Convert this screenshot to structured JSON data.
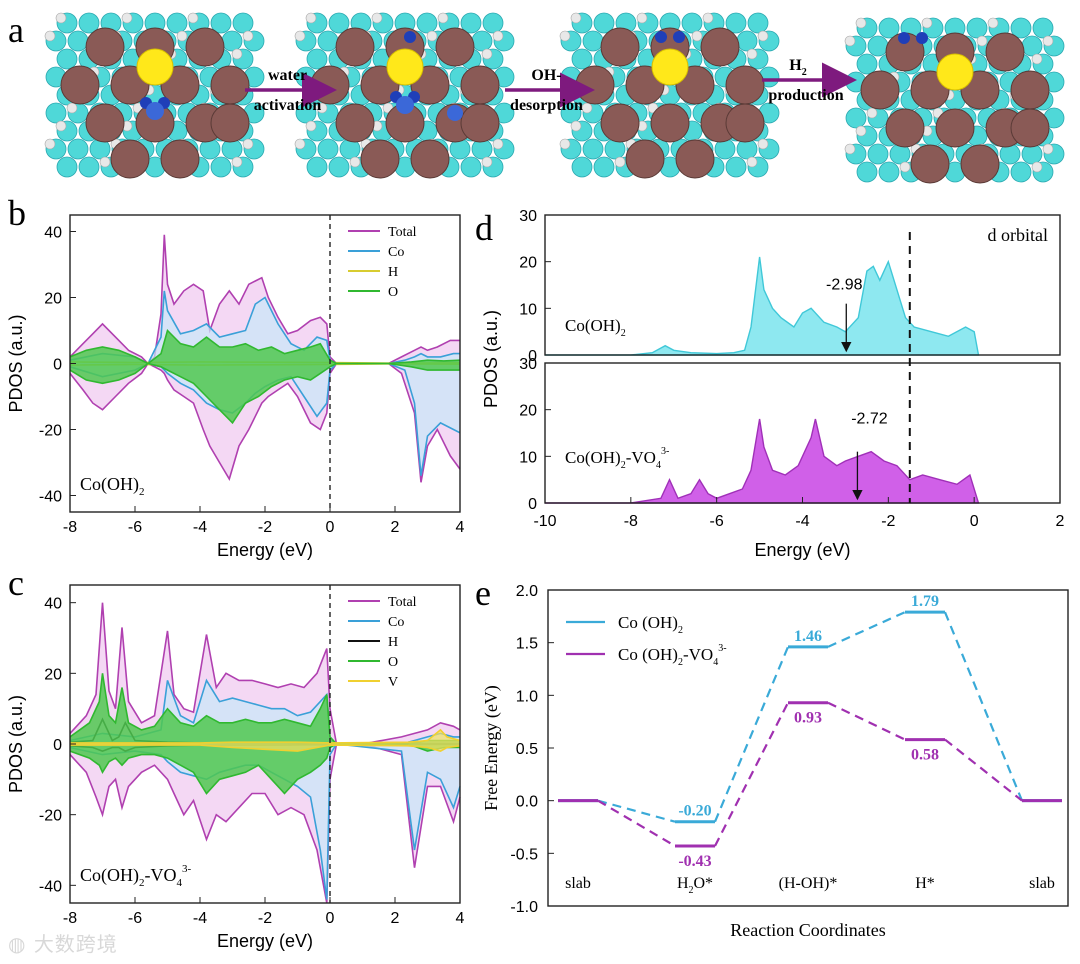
{
  "panel_a": {
    "letter": "a",
    "steps": [
      {
        "top": "water",
        "bottom": "activation"
      },
      {
        "top": "OH-",
        "bottom": "desorption"
      },
      {
        "top": "H2",
        "bottom": "production"
      }
    ],
    "colors": {
      "co": "#8a5a56",
      "o": "#4fd8d8",
      "h": "#e8e8e8",
      "v": "#ffe81a",
      "water": "#1f3fb8",
      "arrow": "#7e1a7e"
    }
  },
  "chart_data": [
    {
      "id": "b",
      "type": "area",
      "letter": "b",
      "title": "",
      "inset_label": "Co(OH)2",
      "xlabel": "Energy (eV)",
      "ylabel": "PDOS (a.u.)",
      "xlim": [
        -8,
        4
      ],
      "ylim": [
        -45,
        45
      ],
      "xticks": [
        -8,
        -6,
        -4,
        -2,
        0,
        2,
        4
      ],
      "yticks": [
        -40,
        -20,
        0,
        20,
        40
      ],
      "fermi": 0,
      "legend": [
        "Total",
        "Co",
        "H",
        "O"
      ],
      "series": [
        {
          "name": "Total",
          "color": "#b040b0",
          "fill": "#f0c8f0",
          "x": [
            -8,
            -7.6,
            -7.3,
            -7,
            -6.6,
            -6.2,
            -5.8,
            -5.6,
            -5.4,
            -5.2,
            -5.1,
            -5.0,
            -4.8,
            -4.5,
            -4.2,
            -3.9,
            -3.7,
            -3.4,
            -3.1,
            -2.8,
            -2.5,
            -2.3,
            -2.1,
            -1.9,
            -1.6,
            -1.3,
            -1,
            -0.6,
            -0.3,
            -0.1,
            0,
            0.2,
            1,
            1.8,
            2.2,
            2.6,
            2.8,
            3.0,
            3.3,
            3.7,
            4
          ],
          "pos": [
            2,
            6,
            9,
            12,
            8,
            4,
            2,
            0,
            2,
            15,
            39,
            24,
            18,
            22,
            24,
            22,
            10,
            18,
            22,
            18,
            24,
            25,
            26,
            20,
            14,
            9,
            10,
            13,
            14,
            12,
            2,
            0,
            0,
            0,
            2,
            4,
            5,
            4,
            5,
            7,
            7
          ],
          "neg": [
            -3,
            -8,
            -12,
            -14,
            -10,
            -6,
            -3,
            0,
            -1,
            -2,
            -3,
            -5,
            -8,
            -10,
            -12,
            -20,
            -25,
            -30,
            -35,
            -25,
            -20,
            -16,
            -12,
            -10,
            -8,
            -6,
            -10,
            -18,
            -20,
            -15,
            -3,
            0,
            0,
            0,
            -3,
            -15,
            -36,
            -25,
            -20,
            -28,
            -32
          ]
        },
        {
          "name": "Co",
          "color": "#3aa0d8",
          "fill": "#c8e8f8",
          "x": [
            -8,
            -7,
            -6,
            -5.6,
            -5.2,
            -5.1,
            -5.0,
            -4.6,
            -4.2,
            -3.8,
            -3.4,
            -3.0,
            -2.6,
            -2.3,
            -2.0,
            -1.6,
            -1.2,
            -0.8,
            -0.4,
            -0.1,
            0,
            0.2,
            1.8,
            2.3,
            2.6,
            2.8,
            3.0,
            3.4,
            3.8,
            4
          ],
          "pos": [
            1,
            3,
            2,
            0,
            8,
            22,
            16,
            9,
            10,
            12,
            8,
            9,
            10,
            18,
            20,
            12,
            6,
            4,
            8,
            7,
            1,
            0,
            0,
            1,
            2,
            3,
            2,
            2,
            3,
            3
          ],
          "neg": [
            -1,
            -4,
            -2,
            0,
            -1,
            -2,
            -3,
            -6,
            -8,
            -12,
            -14,
            -15,
            -12,
            -9,
            -7,
            -5,
            -4,
            -10,
            -16,
            -12,
            -2,
            0,
            0,
            -2,
            -12,
            -34,
            -22,
            -18,
            -20,
            -21
          ]
        },
        {
          "name": "H",
          "color": "#d8cc30",
          "fill": "none",
          "x": [
            -8,
            -6,
            -4,
            -2,
            0,
            2,
            4
          ],
          "pos": [
            0.5,
            0.3,
            0.5,
            0.4,
            0.3,
            0.1,
            0.2
          ],
          "neg": [
            -0.5,
            -0.3,
            -0.5,
            -0.4,
            -0.3,
            -0.1,
            -0.2
          ]
        },
        {
          "name": "O",
          "color": "#30b830",
          "fill": "#50c850",
          "x": [
            -8,
            -7.5,
            -7,
            -6.5,
            -6,
            -5.6,
            -5.2,
            -5.0,
            -4.6,
            -4.2,
            -3.8,
            -3.4,
            -3.0,
            -2.6,
            -2.2,
            -1.8,
            -1.4,
            -1,
            -0.6,
            -0.3,
            0,
            0.2,
            1.8,
            2.5,
            3,
            3.5,
            4
          ],
          "pos": [
            2,
            4,
            5,
            4,
            2,
            0,
            3,
            10,
            6,
            5,
            8,
            5,
            5,
            6,
            4,
            5,
            3,
            4,
            5,
            6,
            1,
            0,
            0,
            0.5,
            1,
            0.8,
            1
          ],
          "neg": [
            -2,
            -5,
            -6,
            -5,
            -3,
            0,
            -1,
            -2,
            -4,
            -6,
            -10,
            -14,
            -18,
            -12,
            -10,
            -7,
            -5,
            -4,
            -5,
            -3,
            -1,
            0,
            0,
            -1,
            -2,
            -2,
            -2
          ]
        }
      ]
    },
    {
      "id": "c",
      "type": "area",
      "letter": "c",
      "title": "",
      "inset_label": "Co(OH)2-VO4 3-",
      "xlabel": "Energy (eV)",
      "ylabel": "PDOS (a.u.)",
      "xlim": [
        -8,
        4
      ],
      "ylim": [
        -45,
        45
      ],
      "xticks": [
        -8,
        -6,
        -4,
        -2,
        0,
        2,
        4
      ],
      "yticks": [
        -40,
        -20,
        0,
        20,
        40
      ],
      "fermi": 0,
      "legend": [
        "Total",
        "Co",
        "H",
        "O",
        "V"
      ],
      "series": [
        {
          "name": "Total",
          "color": "#b040b0",
          "fill": "#f0c8f0",
          "x": [
            -8,
            -7.5,
            -7.2,
            -7.0,
            -6.8,
            -6.6,
            -6.4,
            -6.2,
            -5.8,
            -5.4,
            -5.0,
            -4.8,
            -4.5,
            -4.2,
            -3.8,
            -3.5,
            -3.2,
            -2.8,
            -2.4,
            -2,
            -1.6,
            -1.2,
            -0.8,
            -0.4,
            -0.1,
            0,
            0.2,
            1,
            2.2,
            2.6,
            3.0,
            3.4,
            3.8,
            4
          ],
          "pos": [
            3,
            8,
            14,
            40,
            15,
            10,
            33,
            12,
            6,
            8,
            32,
            14,
            10,
            9,
            31,
            16,
            20,
            18,
            18,
            17,
            16,
            17,
            16,
            20,
            27,
            10,
            0,
            0,
            2,
            3,
            4,
            6,
            5,
            4
          ],
          "neg": [
            -3,
            -8,
            -15,
            -20,
            -12,
            -10,
            -18,
            -12,
            -8,
            -6,
            -10,
            -14,
            -20,
            -16,
            -27,
            -20,
            -22,
            -18,
            -14,
            -14,
            -20,
            -18,
            -20,
            -30,
            -45,
            -10,
            0,
            0,
            -3,
            -35,
            -12,
            -12,
            -22,
            -15
          ]
        },
        {
          "name": "Co",
          "color": "#3aa0d8",
          "fill": "#c8e8f8",
          "x": [
            -8,
            -7,
            -6,
            -5.2,
            -5.0,
            -4.6,
            -4.2,
            -3.8,
            -3.4,
            -3.0,
            -2.6,
            -2.2,
            -1.8,
            -1.4,
            -1,
            -0.6,
            -0.3,
            -0.1,
            0,
            0.2,
            2.2,
            2.6,
            3,
            3.4,
            3.8,
            4
          ],
          "pos": [
            1,
            3,
            2,
            4,
            18,
            8,
            6,
            18,
            12,
            13,
            12,
            11,
            10,
            10,
            8,
            9,
            12,
            14,
            2,
            0,
            0,
            1,
            2,
            3,
            2,
            2
          ],
          "neg": [
            -1,
            -3,
            -2,
            -3,
            -5,
            -8,
            -9,
            -10,
            -8,
            -7,
            -6,
            -6,
            -8,
            -10,
            -12,
            -15,
            -30,
            -44,
            -3,
            0,
            -2,
            -30,
            -8,
            -10,
            -18,
            -12
          ]
        },
        {
          "name": "H",
          "color": "#111111",
          "fill": "none",
          "x": [
            -8,
            -7.3,
            -7.0,
            -6.7,
            -6.5,
            -6.3,
            -6.0,
            -5,
            -4,
            -2,
            0,
            2,
            4
          ],
          "pos": [
            0.5,
            1,
            7,
            1,
            2,
            6,
            1,
            0.5,
            0.3,
            0.3,
            0.2,
            0.1,
            0.1
          ],
          "neg": [
            -0.5,
            -1,
            -2,
            -1,
            -1,
            -2,
            -1,
            -0.5,
            -0.3,
            -0.3,
            -0.2,
            -0.1,
            -0.1
          ]
        },
        {
          "name": "O",
          "color": "#30b830",
          "fill": "#50c850",
          "x": [
            -8,
            -7.4,
            -7.1,
            -7.0,
            -6.8,
            -6.6,
            -6.4,
            -6.2,
            -5.8,
            -5.4,
            -5.0,
            -4.6,
            -4.2,
            -3.8,
            -3.4,
            -3.0,
            -2.6,
            -2.2,
            -1.8,
            -1.4,
            -1.0,
            -0.6,
            -0.3,
            -0.1,
            0,
            0.2,
            2.4,
            3,
            3.5,
            4
          ],
          "pos": [
            2,
            6,
            12,
            20,
            8,
            6,
            16,
            6,
            4,
            5,
            10,
            6,
            5,
            8,
            6,
            6,
            7,
            6,
            6,
            7,
            6,
            5,
            10,
            14,
            2,
            0,
            0,
            1,
            1,
            1
          ],
          "neg": [
            -2,
            -4,
            -6,
            -8,
            -5,
            -4,
            -6,
            -4,
            -3,
            -3,
            -4,
            -6,
            -8,
            -14,
            -10,
            -9,
            -8,
            -6,
            -10,
            -14,
            -10,
            -8,
            -6,
            -4,
            -1,
            0,
            0,
            -2,
            -1,
            -1
          ]
        },
        {
          "name": "V",
          "color": "#f0d030",
          "fill": "#f8e060",
          "x": [
            -8,
            -4,
            -3,
            -2,
            -1,
            0,
            2.4,
            3.0,
            3.4,
            3.6,
            4
          ],
          "pos": [
            0.3,
            0.3,
            0.5,
            0.5,
            0.5,
            0.3,
            0.5,
            1,
            4,
            2,
            1
          ],
          "neg": [
            -0.3,
            -0.3,
            -1,
            -1.5,
            -2,
            -0.3,
            -0.5,
            -1,
            -2,
            -1,
            -0.5
          ]
        }
      ]
    },
    {
      "id": "d",
      "type": "area",
      "letter": "d",
      "title": "d orbital",
      "xlabel": "Energy (eV)",
      "ylabel": "PDOS (a.u.)",
      "xlim": [
        -10,
        2
      ],
      "xticks": [
        -10,
        -8,
        -6,
        -4,
        -2,
        0,
        2
      ],
      "dashed_x": -1.5,
      "subplots": [
        {
          "label": "Co(OH)2",
          "ylim": [
            0,
            30
          ],
          "yticks": [
            0,
            10,
            20,
            30
          ],
          "color": "#40c8d8",
          "fill": "#8ee8f0",
          "center": -2.98,
          "center_label": "-2.98",
          "x": [
            -10,
            -8,
            -7.5,
            -7.2,
            -7.0,
            -6.6,
            -6.0,
            -5.6,
            -5.35,
            -5.2,
            -5.0,
            -4.9,
            -4.7,
            -4.5,
            -4.2,
            -4.0,
            -3.8,
            -3.5,
            -3.2,
            -3.0,
            -2.7,
            -2.5,
            -2.35,
            -2.2,
            -2.0,
            -1.8,
            -1.6,
            -1.4,
            -1.0,
            -0.6,
            -0.2,
            0,
            0.1
          ],
          "y": [
            0,
            0,
            0.5,
            2,
            1,
            0.5,
            0.3,
            0.5,
            1,
            6,
            21,
            14,
            10,
            8,
            6,
            9,
            10,
            7,
            6,
            5,
            8,
            18,
            19,
            16,
            20,
            14,
            8,
            6,
            5,
            4,
            6,
            5,
            0
          ]
        },
        {
          "label": "Co(OH)2-VO4 3-",
          "ylim": [
            0,
            30
          ],
          "yticks": [
            0,
            10,
            20,
            30
          ],
          "color": "#a030b8",
          "fill": "#d060e8",
          "center": -2.72,
          "center_label": "-2.72",
          "x": [
            -10,
            -8,
            -7.3,
            -7.1,
            -6.9,
            -6.6,
            -6.4,
            -6.2,
            -6.0,
            -5.7,
            -5.4,
            -5.2,
            -5.0,
            -4.9,
            -4.7,
            -4.4,
            -4.1,
            -3.8,
            -3.7,
            -3.5,
            -3.2,
            -3.0,
            -2.7,
            -2.4,
            -2.1,
            -1.8,
            -1.5,
            -1.2,
            -0.8,
            -0.4,
            -0.1,
            0.1
          ],
          "y": [
            0,
            0,
            1,
            5,
            1,
            2,
            5,
            2,
            1,
            2,
            3,
            7,
            18,
            12,
            7,
            6,
            8,
            14,
            18,
            10,
            8,
            9,
            10,
            11,
            9,
            8,
            5,
            6,
            5,
            4,
            6,
            0
          ]
        }
      ]
    },
    {
      "id": "e",
      "type": "line",
      "letter": "e",
      "xlabel": "Reaction Coordinates",
      "ylabel": "Free Energy (eV)",
      "ylim": [
        -1.0,
        2.0
      ],
      "yticks": [
        -1.0,
        -0.5,
        0.0,
        0.5,
        1.0,
        1.5,
        2.0
      ],
      "categories": [
        "slab",
        "H2O*",
        "(H-OH)*",
        "H*",
        "slab"
      ],
      "series": [
        {
          "name": "Co (OH)2",
          "color": "#3aaad8",
          "values": [
            0.0,
            -0.2,
            1.46,
            1.79,
            0.0
          ],
          "labels": [
            "",
            "-0.20",
            "1.46",
            "1.79",
            ""
          ]
        },
        {
          "name": "Co (OH)2-VO4 3-",
          "color": "#a030b0",
          "values": [
            0.0,
            -0.43,
            0.93,
            0.58,
            0.0
          ],
          "labels": [
            "",
            "-0.43",
            "0.93",
            "0.58",
            ""
          ]
        }
      ]
    }
  ],
  "watermark": "大数跨境"
}
